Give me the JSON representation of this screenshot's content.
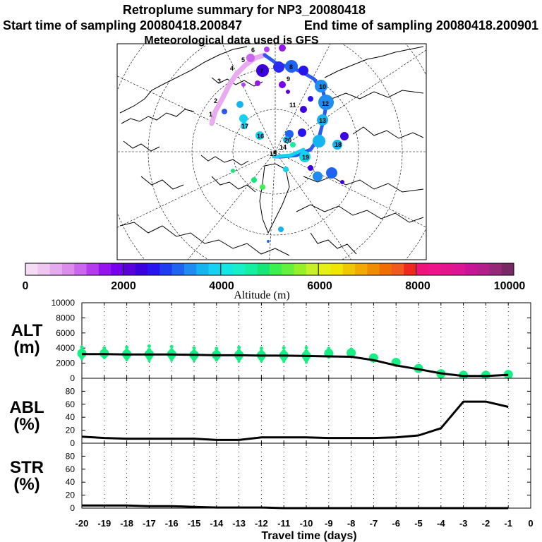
{
  "title": "Retroplume summary for NP3_20080418",
  "subtitle_start": "Start time of sampling 20080418.200847",
  "subtitle_end": "End time of sampling 20080418.200901",
  "met_note": "Meteorological data used is GFS",
  "colorbar": {
    "label": "Altitude (m)",
    "ticks": [
      "0",
      "2000",
      "4000",
      "6000",
      "8000",
      "10000"
    ],
    "range": [
      0,
      10000
    ],
    "colors": [
      "#f4dcf4",
      "#eec6f0",
      "#e6aaee",
      "#dc8cec",
      "#cc66ee",
      "#b43cee",
      "#9614f0",
      "#7800f0",
      "#5a00dc",
      "#3c00e0",
      "#2814f0",
      "#1e3cf0",
      "#1e64f0",
      "#1e8cf0",
      "#14b4f0",
      "#14d2f0",
      "#14e6e6",
      "#14f0c8",
      "#14f0a0",
      "#14e678",
      "#3cf050",
      "#64f03c",
      "#96f028",
      "#c8f028",
      "#e6f014",
      "#f0e600",
      "#f0c800",
      "#f0aa00",
      "#f08c00",
      "#f06e00",
      "#f05a1e",
      "#f0281e",
      "#f0147a",
      "#f0148c",
      "#e6148c",
      "#dc1496",
      "#c81496",
      "#b41e8c",
      "#962878",
      "#782864"
    ]
  },
  "map": {
    "plume_labels": [
      "2",
      "3",
      "4",
      "5",
      "6",
      "7",
      "8",
      "9",
      "10",
      "11",
      "12",
      "13",
      "14",
      "15",
      "16",
      "17",
      "18",
      "19",
      "20"
    ],
    "track_labels": [
      "1",
      "2",
      "3",
      "4",
      "5",
      "6",
      "7",
      "8",
      "9",
      "10",
      "11",
      "12",
      "13",
      "14",
      "15",
      "16",
      "17",
      "18",
      "19",
      "20"
    ]
  },
  "chart_data": {
    "type": "line",
    "xlabel": "Travel time (days)",
    "x": [
      -20,
      -19,
      -18,
      -17,
      -16,
      -15,
      -14,
      -13,
      -12,
      -11,
      -10,
      -9,
      -8,
      -7,
      -6,
      -5,
      -4,
      -3,
      -2,
      -1
    ],
    "xlim": [
      -20,
      0
    ],
    "xticks": [
      "-20",
      "-19",
      "-18",
      "-17",
      "-16",
      "-15",
      "-14",
      "-13",
      "-12",
      "-11",
      "-10",
      "-9",
      "-8",
      "-7",
      "-6",
      "-5",
      "-4",
      "-3",
      "-2",
      "-1",
      "0"
    ],
    "panels": [
      {
        "label_top": "ALT",
        "label_bottom": "(m)",
        "ylim": [
          0,
          10000
        ],
        "yticks": [
          "0",
          "2000",
          "4000",
          "6000",
          "8000",
          "10000"
        ],
        "series": [
          {
            "name": "mean altitude",
            "values": [
              3200,
              3200,
              3150,
              3150,
              3150,
              3100,
              3050,
              3050,
              3000,
              3000,
              2950,
              2900,
              2850,
              2400,
              1700,
              1200,
              650,
              300,
              300,
              450
            ]
          }
        ],
        "clusters": {
          "color": "#14f082",
          "x": [
            -20,
            -19,
            -18,
            -17,
            -16,
            -15,
            -14,
            -13,
            -12,
            -11,
            -10,
            -9,
            -8,
            -7,
            -6,
            -5,
            -4,
            -3,
            -2,
            -1
          ],
          "values": [
            3300,
            3300,
            3200,
            3200,
            3200,
            3100,
            3100,
            3100,
            3050,
            3050,
            3000,
            3300,
            3350,
            2700,
            2100,
            1300,
            600,
            400,
            400,
            500
          ],
          "spread": [
            1200,
            1000,
            1300,
            1500,
            1400,
            1300,
            1200,
            1400,
            1300,
            1400,
            1500,
            900,
            700,
            400,
            500,
            500,
            300,
            200,
            200,
            200
          ]
        }
      },
      {
        "label_top": "ABL",
        "label_bottom": "(%)",
        "ylim": [
          0,
          100
        ],
        "yticks": [
          "0",
          "20",
          "40",
          "60",
          "80"
        ],
        "series": [
          {
            "name": "ABL fraction",
            "values": [
              10,
              8,
              7,
              7,
              7,
              7,
              5,
              5,
              9,
              9,
              9,
              8,
              8,
              8,
              9,
              12,
              23,
              64,
              64,
              56
            ]
          }
        ]
      },
      {
        "label_top": "STR",
        "label_bottom": "(%)",
        "ylim": [
          0,
          100
        ],
        "yticks": [
          "0",
          "20",
          "40",
          "60",
          "80"
        ],
        "series": [
          {
            "name": "STR fraction",
            "values": [
              4,
              4,
              4,
              3,
              3,
              2,
              1,
              1,
              1,
              0,
              0,
              0,
              0,
              0,
              0,
              0,
              0,
              0,
              0,
              0
            ]
          }
        ]
      }
    ]
  }
}
